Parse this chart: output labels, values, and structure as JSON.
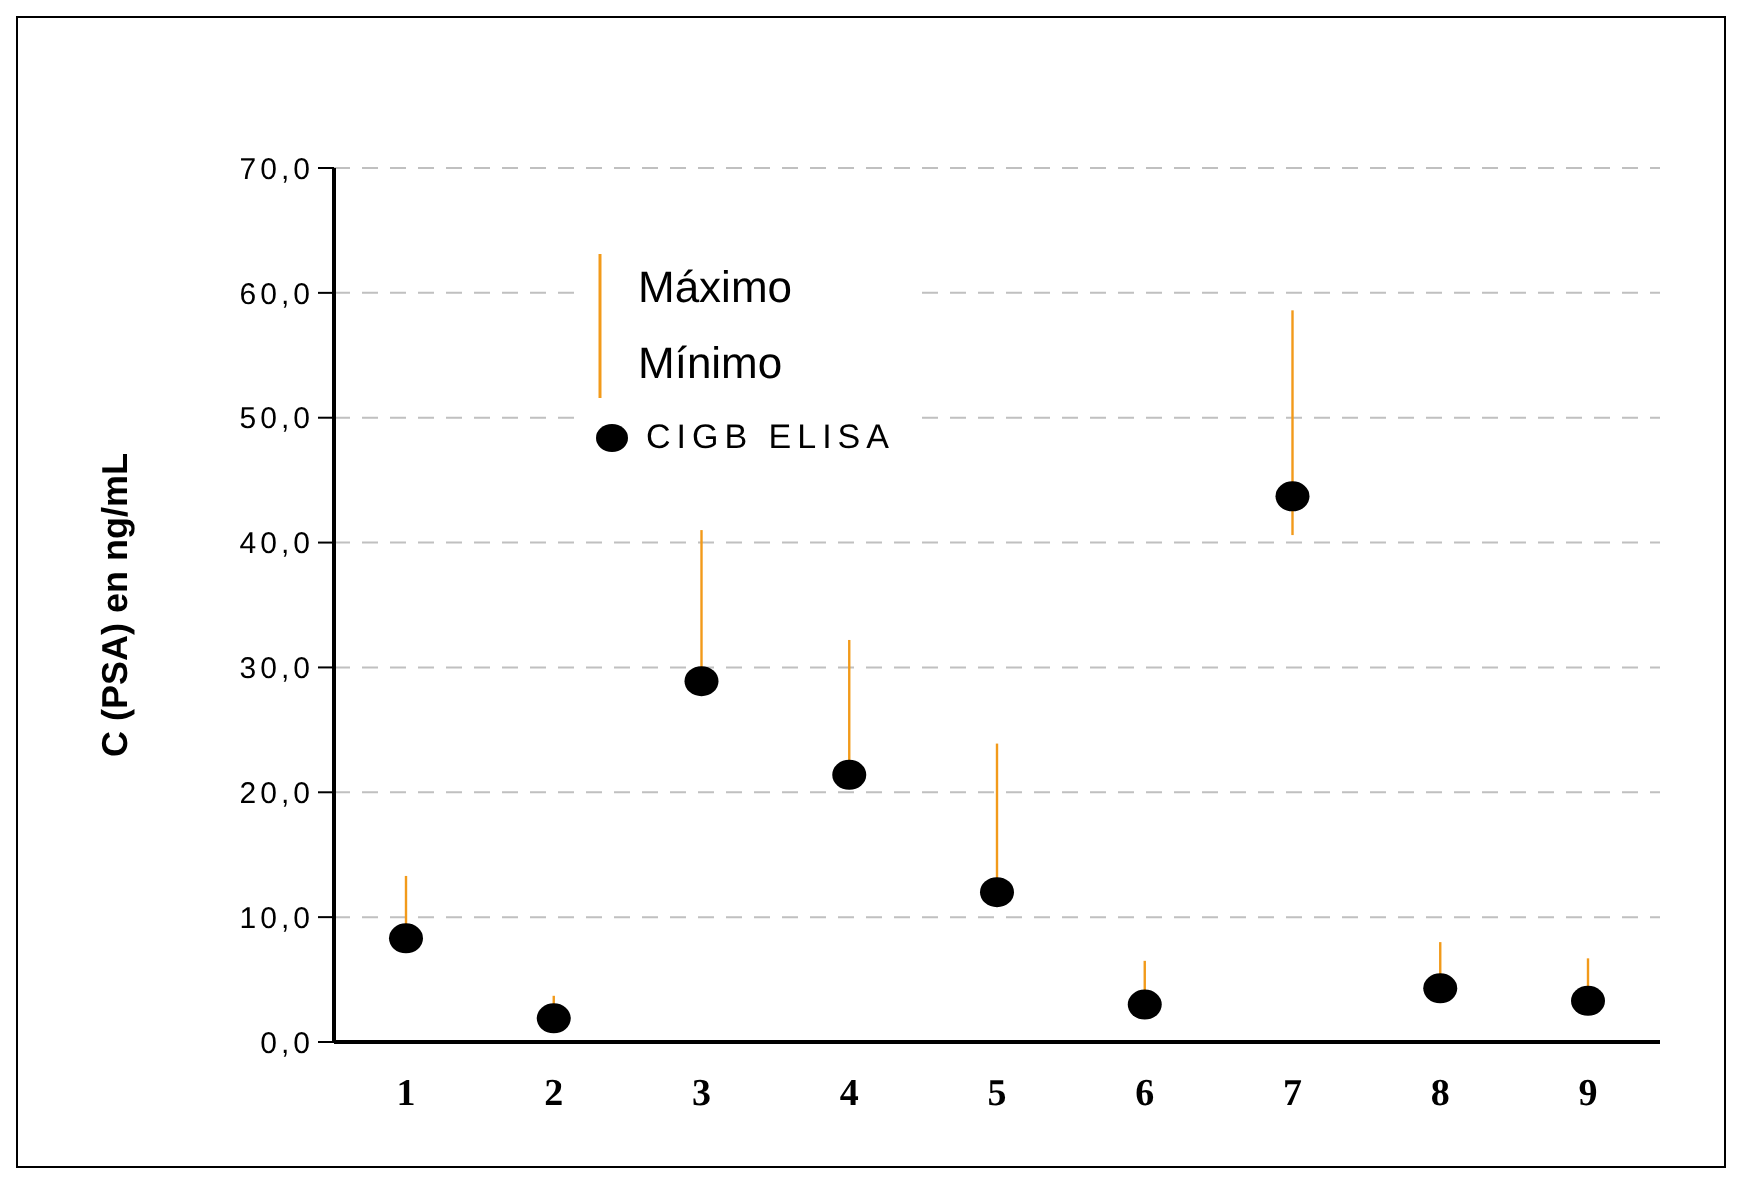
{
  "chart_data": {
    "type": "scatter",
    "ylabel": "C (PSA) en ng/mL",
    "categories": [
      "1",
      "2",
      "3",
      "4",
      "5",
      "6",
      "7",
      "8",
      "9"
    ],
    "series": [
      {
        "name": "CIGB ELISA",
        "color": "#000000",
        "values": [
          8.3,
          1.9,
          28.9,
          21.4,
          12.0,
          3.0,
          43.7,
          4.3,
          3.3
        ],
        "errors": [
          [
            8.3,
            13.3
          ],
          [
            1.9,
            3.7
          ],
          [
            28.9,
            41.0
          ],
          [
            21.4,
            32.2
          ],
          [
            12.0,
            23.9
          ],
          [
            3.0,
            6.5
          ],
          [
            40.6,
            58.6
          ],
          [
            4.3,
            8.0
          ],
          [
            3.3,
            6.7
          ]
        ]
      }
    ],
    "annotations": [
      "Máximo",
      "Mínimo"
    ],
    "ylim": [
      0,
      70
    ],
    "yticks": [
      {
        "value": 0,
        "label": "0,0"
      },
      {
        "value": 10,
        "label": "10,0"
      },
      {
        "value": 20,
        "label": "20,0"
      },
      {
        "value": 30,
        "label": "30,0"
      },
      {
        "value": 40,
        "label": "40,0"
      },
      {
        "value": 50,
        "label": "50,0"
      },
      {
        "value": 60,
        "label": "60,0"
      },
      {
        "value": 70,
        "label": "70,0"
      }
    ],
    "grid": "y",
    "legend": "top left",
    "marker": "circle"
  }
}
